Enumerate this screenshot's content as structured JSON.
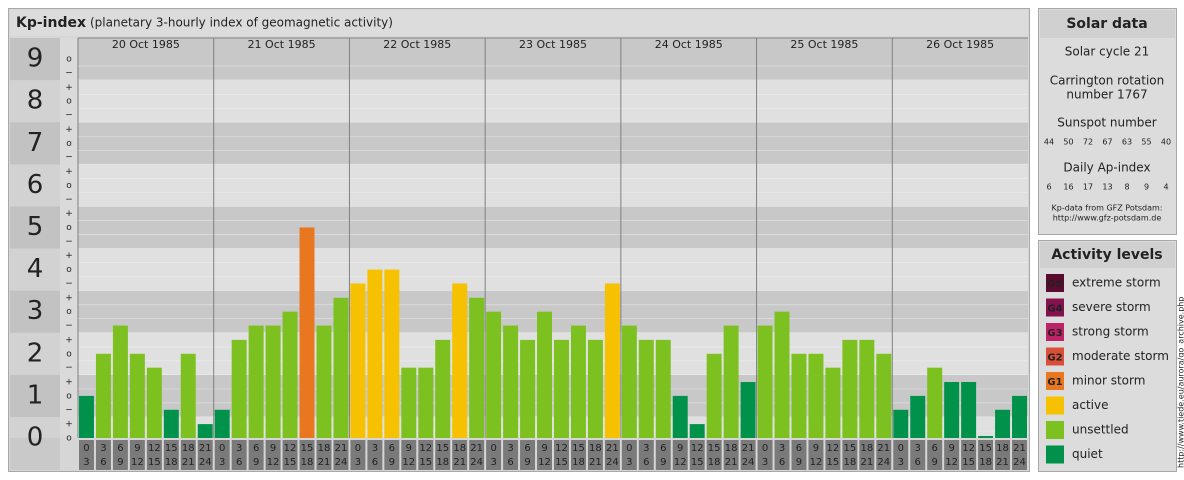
{
  "chart_data": {
    "type": "bar",
    "title": "Kp-index",
    "subtitle": "(planetary 3-hourly index of geomagnetic activity)",
    "ylim": [
      0,
      9.5
    ],
    "yticks": [
      0,
      1,
      2,
      3,
      4,
      5,
      6,
      7,
      8,
      9
    ],
    "yminor": [
      {
        "value": 0,
        "label": "o"
      },
      {
        "value": 0.33,
        "label": "+"
      },
      {
        "value": 0.67,
        "label": "−"
      },
      {
        "value": 1,
        "label": "o"
      },
      {
        "value": 1.33,
        "label": "+"
      },
      {
        "value": 1.67,
        "label": "−"
      },
      {
        "value": 2,
        "label": "o"
      },
      {
        "value": 2.33,
        "label": "+"
      },
      {
        "value": 2.67,
        "label": "−"
      },
      {
        "value": 3,
        "label": "o"
      },
      {
        "value": 3.33,
        "label": "+"
      },
      {
        "value": 3.67,
        "label": "−"
      },
      {
        "value": 4,
        "label": "o"
      },
      {
        "value": 4.33,
        "label": "+"
      },
      {
        "value": 4.67,
        "label": "−"
      },
      {
        "value": 5,
        "label": "o"
      },
      {
        "value": 5.33,
        "label": "+"
      },
      {
        "value": 5.67,
        "label": "−"
      },
      {
        "value": 6,
        "label": "o"
      },
      {
        "value": 6.33,
        "label": "+"
      },
      {
        "value": 6.67,
        "label": "−"
      },
      {
        "value": 7,
        "label": "o"
      },
      {
        "value": 7.33,
        "label": "+"
      },
      {
        "value": 7.67,
        "label": "−"
      },
      {
        "value": 8,
        "label": "o"
      },
      {
        "value": 8.33,
        "label": "+"
      },
      {
        "value": 8.67,
        "label": "−"
      },
      {
        "value": 9,
        "label": "o"
      }
    ],
    "hour_labels": [
      [
        "0",
        "3"
      ],
      [
        "3",
        "6"
      ],
      [
        "6",
        "9"
      ],
      [
        "9",
        "12"
      ],
      [
        "12",
        "15"
      ],
      [
        "15",
        "18"
      ],
      [
        "18",
        "21"
      ],
      [
        "21",
        "24"
      ]
    ],
    "groups": [
      {
        "label": "20 Oct 1985",
        "values": [
          1,
          2,
          2.67,
          2,
          1.67,
          0.67,
          2,
          0.33
        ],
        "colors": [
          "#00924b",
          "#7cc11f",
          "#7cc11f",
          "#7cc11f",
          "#7cc11f",
          "#00924b",
          "#7cc11f",
          "#00924b"
        ]
      },
      {
        "label": "21 Oct 1985",
        "values": [
          0.67,
          2.33,
          2.67,
          2.67,
          3,
          5,
          2.67,
          3.33
        ],
        "colors": [
          "#00924b",
          "#7cc11f",
          "#7cc11f",
          "#7cc11f",
          "#7cc11f",
          "#e8771f",
          "#7cc11f",
          "#7cc11f"
        ]
      },
      {
        "label": "22 Oct 1985",
        "values": [
          3.67,
          4,
          4,
          1.67,
          1.67,
          2.33,
          3.67,
          3.33
        ],
        "colors": [
          "#f6c100",
          "#f6c100",
          "#f6c100",
          "#7cc11f",
          "#7cc11f",
          "#7cc11f",
          "#f6c100",
          "#7cc11f"
        ]
      },
      {
        "label": "23 Oct 1985",
        "values": [
          3,
          2.67,
          2.33,
          3,
          2.33,
          2.67,
          2.33,
          3.67
        ],
        "colors": [
          "#7cc11f",
          "#7cc11f",
          "#7cc11f",
          "#7cc11f",
          "#7cc11f",
          "#7cc11f",
          "#7cc11f",
          "#f6c100"
        ]
      },
      {
        "label": "24 Oct 1985",
        "values": [
          2.67,
          2.33,
          2.33,
          1,
          0.33,
          2,
          2.67,
          1.33
        ],
        "colors": [
          "#7cc11f",
          "#7cc11f",
          "#7cc11f",
          "#00924b",
          "#00924b",
          "#7cc11f",
          "#7cc11f",
          "#00924b"
        ]
      },
      {
        "label": "25 Oct 1985",
        "values": [
          2.67,
          3,
          2,
          2,
          1.67,
          2.33,
          2.33,
          2
        ],
        "colors": [
          "#7cc11f",
          "#7cc11f",
          "#7cc11f",
          "#7cc11f",
          "#7cc11f",
          "#7cc11f",
          "#7cc11f",
          "#7cc11f"
        ]
      },
      {
        "label": "26 Oct 1985",
        "values": [
          0.67,
          1,
          1.67,
          1.33,
          1.33,
          0,
          0.67,
          1
        ],
        "colors": [
          "#00924b",
          "#00924b",
          "#7cc11f",
          "#00924b",
          "#00924b",
          "#00924b",
          "#00924b",
          "#00924b"
        ]
      }
    ]
  },
  "solar_data": {
    "title": "Solar data",
    "cycle": "Solar cycle 21",
    "rotation": [
      "Carrington rotation",
      "number 1767"
    ],
    "sunspot_title": "Sunspot number",
    "sunspot": [
      44,
      50,
      72,
      67,
      63,
      55,
      40
    ],
    "ap_title": "Daily Ap-index",
    "ap": [
      6,
      16,
      17,
      13,
      8,
      9,
      4
    ],
    "source": [
      "Kp-data from GFZ Potsdam:",
      "http://www.gfz-potsdam.de"
    ]
  },
  "activity_levels": {
    "title": "Activity levels",
    "items": [
      {
        "badge": "G5",
        "label": "extreme storm",
        "color": "#5a0a2e"
      },
      {
        "badge": "G4",
        "label": "severe storm",
        "color": "#85114f"
      },
      {
        "badge": "G3",
        "label": "strong storm",
        "color": "#bf2266"
      },
      {
        "badge": "G2",
        "label": "moderate storm",
        "color": "#d9503a"
      },
      {
        "badge": "G1",
        "label": "minor storm",
        "color": "#e8771f"
      },
      {
        "label": "active",
        "color": "#f6c100"
      },
      {
        "label": "unsettled",
        "color": "#7cc11f"
      },
      {
        "label": "quiet",
        "color": "#00924b"
      }
    ]
  },
  "credit": "http://www.tiede.eu/aurora/go_archive.php"
}
